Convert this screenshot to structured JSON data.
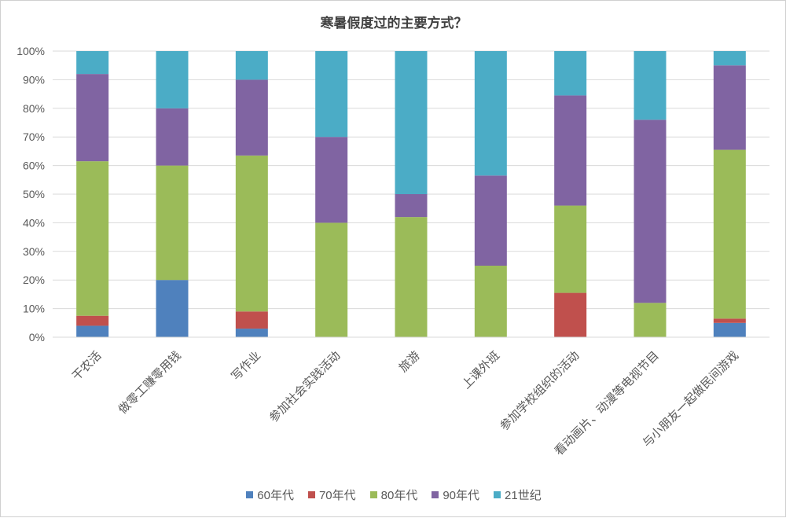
{
  "chart_data": {
    "type": "bar",
    "stacked": true,
    "normalized": true,
    "title": "寒暑假度过的主要方式？",
    "xlabel": "",
    "ylabel": "",
    "ylim": [
      0,
      100
    ],
    "y_ticks": [
      "0%",
      "10%",
      "20%",
      "30%",
      "40%",
      "50%",
      "60%",
      "70%",
      "80%",
      "90%",
      "100%"
    ],
    "grid": true,
    "legend_position": "bottom",
    "categories": [
      "干农活",
      "做零工赚零用钱",
      "写作业",
      "参加社会实践活动",
      "旅游",
      "上课外班",
      "参加学校组织的活动",
      "看动画片、动漫等电视节目",
      "与小朋友一起做民间游戏"
    ],
    "series": [
      {
        "name": "60年代",
        "color": "#4f81bd",
        "values": [
          4,
          20,
          3,
          0,
          0,
          0,
          0,
          0,
          5
        ]
      },
      {
        "name": "70年代",
        "color": "#c0504d",
        "values": [
          3.5,
          0,
          6,
          0,
          0,
          0,
          15.5,
          0,
          1.5
        ]
      },
      {
        "name": "80年代",
        "color": "#9bbb59",
        "values": [
          54,
          40,
          54.5,
          40,
          42,
          25,
          30.5,
          12,
          59
        ]
      },
      {
        "name": "90年代",
        "color": "#8064a2",
        "values": [
          30.5,
          20,
          26.5,
          30,
          8,
          31.5,
          38.5,
          64,
          29.5
        ]
      },
      {
        "name": "21世纪",
        "color": "#4bacc6",
        "values": [
          8,
          20,
          10,
          30,
          50,
          43.5,
          15.5,
          24,
          5
        ]
      }
    ]
  }
}
